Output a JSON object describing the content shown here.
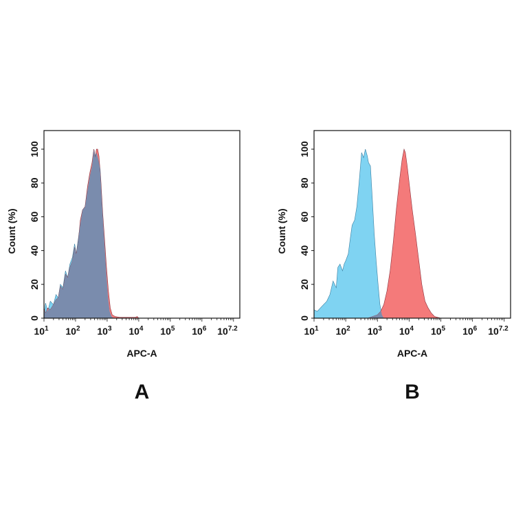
{
  "chart_data": [
    {
      "type": "area",
      "panel_label": "A",
      "xlabel": "APC-A",
      "ylabel": "Count  (%)",
      "x_scale": "log10",
      "xlim_exponent": [
        1,
        7.2
      ],
      "x_tick_labels": [
        {
          "base": "10",
          "exp": "1",
          "pos": 1
        },
        {
          "base": "10",
          "exp": "2",
          "pos": 2
        },
        {
          "base": "10",
          "exp": "3",
          "pos": 3
        },
        {
          "base": "10",
          "exp": "4",
          "pos": 4
        },
        {
          "base": "10",
          "exp": "5",
          "pos": 5
        },
        {
          "base": "10",
          "exp": "6",
          "pos": 6
        },
        {
          "base": "10",
          "exp": "7.2",
          "pos": 7.2
        }
      ],
      "ylim": [
        0,
        111
      ],
      "y_ticks": [
        0,
        20,
        40,
        60,
        80,
        100
      ],
      "grid": false,
      "overlap_color": "#7a8cad",
      "series": [
        {
          "color": "#7fd3f2",
          "x_log10": [
            1.0,
            1.05,
            1.12,
            1.2,
            1.3,
            1.38,
            1.45,
            1.52,
            1.6,
            1.68,
            1.75,
            1.82,
            1.9,
            1.97,
            2.02,
            2.08,
            2.15,
            2.22,
            2.3,
            2.38,
            2.45,
            2.52,
            2.58,
            2.62,
            2.66,
            2.72,
            2.78,
            2.83,
            2.88,
            2.93,
            2.98,
            3.03,
            3.08,
            3.14,
            3.2
          ],
          "y": [
            2,
            9,
            4,
            10,
            8,
            14,
            12,
            20,
            18,
            28,
            24,
            32,
            36,
            44,
            38,
            46,
            56,
            64,
            66,
            76,
            84,
            90,
            100,
            96,
            98,
            94,
            88,
            70,
            55,
            40,
            25,
            12,
            4,
            1,
            0
          ]
        },
        {
          "color": "#f47a7a",
          "x_log10": [
            1.0,
            1.05,
            1.12,
            1.2,
            1.3,
            1.38,
            1.45,
            1.52,
            1.6,
            1.68,
            1.75,
            1.82,
            1.9,
            1.97,
            2.02,
            2.08,
            2.15,
            2.22,
            2.3,
            2.38,
            2.45,
            2.52,
            2.58,
            2.62,
            2.66,
            2.7,
            2.74,
            2.8,
            2.86,
            2.92,
            2.98,
            3.04,
            3.1,
            3.16,
            3.25,
            3.4,
            3.9,
            3.95,
            4.0
          ],
          "y": [
            6,
            3,
            6,
            5,
            8,
            11,
            12,
            19,
            17,
            26,
            24,
            30,
            34,
            42,
            38,
            44,
            58,
            64,
            66,
            78,
            86,
            92,
            100,
            95,
            100,
            100,
            96,
            82,
            62,
            46,
            30,
            16,
            6,
            2,
            1,
            0.5,
            0.5,
            1,
            0
          ]
        }
      ]
    },
    {
      "type": "area",
      "panel_label": "B",
      "xlabel": "APC-A",
      "ylabel": "Count  (%)",
      "x_scale": "log10",
      "xlim_exponent": [
        1,
        7.2
      ],
      "x_tick_labels": [
        {
          "base": "10",
          "exp": "1",
          "pos": 1
        },
        {
          "base": "10",
          "exp": "2",
          "pos": 2
        },
        {
          "base": "10",
          "exp": "3",
          "pos": 3
        },
        {
          "base": "10",
          "exp": "4",
          "pos": 4
        },
        {
          "base": "10",
          "exp": "5",
          "pos": 5
        },
        {
          "base": "10",
          "exp": "6",
          "pos": 6
        },
        {
          "base": "10",
          "exp": "7.2",
          "pos": 7.2
        }
      ],
      "ylim": [
        0,
        111
      ],
      "y_ticks": [
        0,
        20,
        40,
        60,
        80,
        100
      ],
      "grid": false,
      "overlap_color": "#7a8cad",
      "series": [
        {
          "color": "#7fd3f2",
          "x_log10": [
            1.0,
            1.1,
            1.2,
            1.3,
            1.4,
            1.5,
            1.6,
            1.7,
            1.75,
            1.82,
            1.9,
            1.95,
            2.0,
            2.08,
            2.15,
            2.2,
            2.28,
            2.35,
            2.42,
            2.5,
            2.56,
            2.62,
            2.68,
            2.72,
            2.78,
            2.84,
            2.9,
            2.96,
            3.02,
            3.08,
            3.14,
            3.2
          ],
          "y": [
            5,
            4,
            6,
            8,
            10,
            14,
            22,
            18,
            30,
            32,
            28,
            32,
            34,
            38,
            48,
            55,
            58,
            66,
            80,
            98,
            95,
            100,
            96,
            92,
            90,
            70,
            50,
            34,
            20,
            8,
            2,
            0
          ]
        },
        {
          "color": "#f47a7a",
          "x_log10": [
            2.7,
            2.85,
            3.0,
            3.1,
            3.2,
            3.3,
            3.4,
            3.5,
            3.6,
            3.7,
            3.78,
            3.84,
            3.88,
            3.94,
            4.0,
            4.1,
            4.2,
            4.3,
            4.4,
            4.5,
            4.6,
            4.7,
            4.8,
            4.9,
            5.0
          ],
          "y": [
            0,
            1,
            2,
            4,
            8,
            16,
            28,
            45,
            65,
            82,
            94,
            100,
            98,
            90,
            80,
            64,
            50,
            35,
            20,
            10,
            6,
            3,
            1,
            0.5,
            0
          ]
        }
      ]
    }
  ]
}
